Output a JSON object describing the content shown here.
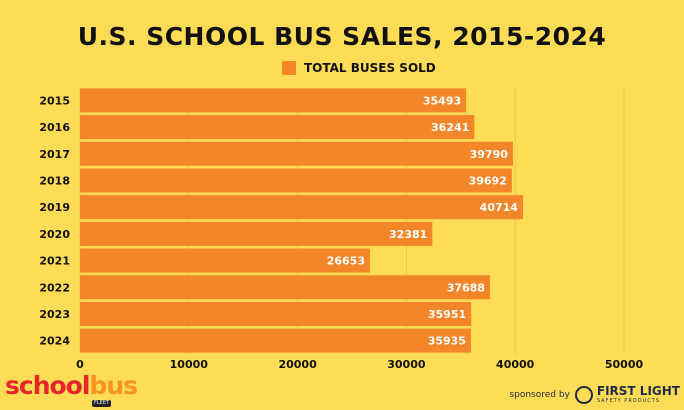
{
  "chart_data": {
    "type": "bar",
    "orientation": "horizontal",
    "title": "U.S. SCHOOL BUS SALES, 2015-2024",
    "categories": [
      "2015",
      "2016",
      "2017",
      "2018",
      "2019",
      "2020",
      "2021",
      "2022",
      "2023",
      "2024"
    ],
    "series": [
      {
        "name": "TOTAL BUSES SOLD",
        "values": [
          35493,
          36241,
          39790,
          39692,
          40714,
          32381,
          26653,
          37688,
          35951,
          35935
        ]
      }
    ],
    "xlim": [
      0,
      50000
    ],
    "xticks": [
      0,
      10000,
      20000,
      30000,
      40000,
      50000
    ],
    "grid": true,
    "legend": "top",
    "colors": {
      "bar": "#F4862A",
      "background": "#FEDC56",
      "text": "#111111",
      "gridline": "#E8C64A"
    }
  },
  "footer": {
    "logo": "schoolbus",
    "logo_sub": "FLEET",
    "sponsored": "sponsored by",
    "sponsor_name": "FIRST LIGHT",
    "sponsor_sub": "SAFETY PRODUCTS"
  }
}
